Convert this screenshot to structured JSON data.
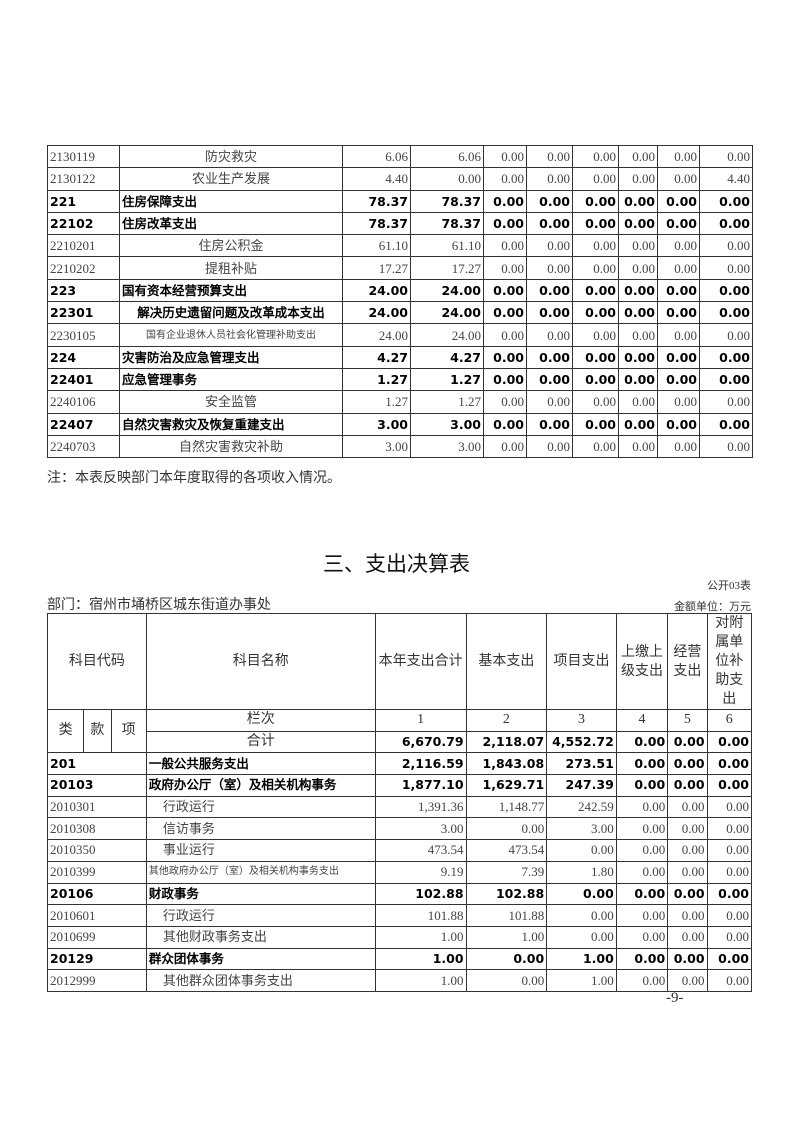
{
  "table1": {
    "rows": [
      {
        "code": "2130119",
        "name": "防灾救灾",
        "v": [
          "6.06",
          "6.06",
          "0.00",
          "0.00",
          "0.00",
          "0.00",
          "0.00",
          "0.00"
        ],
        "bold": false,
        "align": "c"
      },
      {
        "code": "2130122",
        "name": "农业生产发展",
        "v": [
          "4.40",
          "0.00",
          "0.00",
          "0.00",
          "0.00",
          "0.00",
          "0.00",
          "4.40"
        ],
        "bold": false,
        "align": "c"
      },
      {
        "code": "221",
        "name": "住房保障支出",
        "v": [
          "78.37",
          "78.37",
          "0.00",
          "0.00",
          "0.00",
          "0.00",
          "0.00",
          "0.00"
        ],
        "bold": true,
        "align": "l"
      },
      {
        "code": "22102",
        "name": "住房改革支出",
        "v": [
          "78.37",
          "78.37",
          "0.00",
          "0.00",
          "0.00",
          "0.00",
          "0.00",
          "0.00"
        ],
        "bold": true,
        "align": "l"
      },
      {
        "code": "2210201",
        "name": "住房公积金",
        "v": [
          "61.10",
          "61.10",
          "0.00",
          "0.00",
          "0.00",
          "0.00",
          "0.00",
          "0.00"
        ],
        "bold": false,
        "align": "c"
      },
      {
        "code": "2210202",
        "name": "提租补贴",
        "v": [
          "17.27",
          "17.27",
          "0.00",
          "0.00",
          "0.00",
          "0.00",
          "0.00",
          "0.00"
        ],
        "bold": false,
        "align": "c"
      },
      {
        "code": "223",
        "name": "国有资本经营预算支出",
        "v": [
          "24.00",
          "24.00",
          "0.00",
          "0.00",
          "0.00",
          "0.00",
          "0.00",
          "0.00"
        ],
        "bold": true,
        "align": "l"
      },
      {
        "code": "22301",
        "name": "解决历史遗留问题及改革成本支出",
        "v": [
          "24.00",
          "24.00",
          "0.00",
          "0.00",
          "0.00",
          "0.00",
          "0.00",
          "0.00"
        ],
        "bold": true,
        "align": "c"
      },
      {
        "code": "2230105",
        "name": "国有企业退休人员社会化管理补助支出",
        "v": [
          "24.00",
          "24.00",
          "0.00",
          "0.00",
          "0.00",
          "0.00",
          "0.00",
          "0.00"
        ],
        "bold": false,
        "align": "c",
        "small": true
      },
      {
        "code": "224",
        "name": "灾害防治及应急管理支出",
        "v": [
          "4.27",
          "4.27",
          "0.00",
          "0.00",
          "0.00",
          "0.00",
          "0.00",
          "0.00"
        ],
        "bold": true,
        "align": "l"
      },
      {
        "code": "22401",
        "name": "应急管理事务",
        "v": [
          "1.27",
          "1.27",
          "0.00",
          "0.00",
          "0.00",
          "0.00",
          "0.00",
          "0.00"
        ],
        "bold": true,
        "align": "l"
      },
      {
        "code": "2240106",
        "name": "安全监管",
        "v": [
          "1.27",
          "1.27",
          "0.00",
          "0.00",
          "0.00",
          "0.00",
          "0.00",
          "0.00"
        ],
        "bold": false,
        "align": "c"
      },
      {
        "code": "22407",
        "name": "自然灾害救灾及恢复重建支出",
        "v": [
          "3.00",
          "3.00",
          "0.00",
          "0.00",
          "0.00",
          "0.00",
          "0.00",
          "0.00"
        ],
        "bold": true,
        "align": "l"
      },
      {
        "code": "2240703",
        "name": "自然灾害救灾补助",
        "v": [
          "3.00",
          "3.00",
          "0.00",
          "0.00",
          "0.00",
          "0.00",
          "0.00",
          "0.00"
        ],
        "bold": false,
        "align": "c"
      }
    ],
    "note": "注：本表反映部门本年度取得的各项收入情况。"
  },
  "table2": {
    "title": "三、支出决算表",
    "form_no": "公开03表",
    "department": "部门：宿州市埇桥区城东街道办事处",
    "unit": "金额单位：万元",
    "headers": {
      "code": "科目代码",
      "name": "科目名称",
      "cols": [
        "本年支出合计",
        "基本支出",
        "项目支出",
        "上缴上级支出",
        "经营支出",
        "对附属单位补助支出"
      ],
      "lei": "类",
      "kuan": "款",
      "xiang": "项",
      "lanci": "栏次",
      "nums": [
        "1",
        "2",
        "3",
        "4",
        "5",
        "6"
      ]
    },
    "total": {
      "label": "合计",
      "v": [
        "6,670.79",
        "2,118.07",
        "4,552.72",
        "0.00",
        "0.00",
        "0.00"
      ]
    },
    "rows": [
      {
        "code": "201",
        "name": "一般公共服务支出",
        "v": [
          "2,116.59",
          "1,843.08",
          "273.51",
          "0.00",
          "0.00",
          "0.00"
        ],
        "bold": true
      },
      {
        "code": "20103",
        "name": "政府办公厅（室）及相关机构事务",
        "v": [
          "1,877.10",
          "1,629.71",
          "247.39",
          "0.00",
          "0.00",
          "0.00"
        ],
        "bold": true
      },
      {
        "code": "2010301",
        "name": "行政运行",
        "v": [
          "1,391.36",
          "1,148.77",
          "242.59",
          "0.00",
          "0.00",
          "0.00"
        ],
        "bold": false,
        "indent": true
      },
      {
        "code": "2010308",
        "name": "信访事务",
        "v": [
          "3.00",
          "0.00",
          "3.00",
          "0.00",
          "0.00",
          "0.00"
        ],
        "bold": false,
        "indent": true
      },
      {
        "code": "2010350",
        "name": "事业运行",
        "v": [
          "473.54",
          "473.54",
          "0.00",
          "0.00",
          "0.00",
          "0.00"
        ],
        "bold": false,
        "indent": true
      },
      {
        "code": "2010399",
        "name": "其他政府办公厅（室）及相关机构事务支出",
        "v": [
          "9.19",
          "7.39",
          "1.80",
          "0.00",
          "0.00",
          "0.00"
        ],
        "bold": false,
        "small": true
      },
      {
        "code": "20106",
        "name": "财政事务",
        "v": [
          "102.88",
          "102.88",
          "0.00",
          "0.00",
          "0.00",
          "0.00"
        ],
        "bold": true
      },
      {
        "code": "2010601",
        "name": "行政运行",
        "v": [
          "101.88",
          "101.88",
          "0.00",
          "0.00",
          "0.00",
          "0.00"
        ],
        "bold": false,
        "indent": true
      },
      {
        "code": "2010699",
        "name": "其他财政事务支出",
        "v": [
          "1.00",
          "1.00",
          "0.00",
          "0.00",
          "0.00",
          "0.00"
        ],
        "bold": false,
        "indent": true
      },
      {
        "code": "20129",
        "name": "群众团体事务",
        "v": [
          "1.00",
          "0.00",
          "1.00",
          "0.00",
          "0.00",
          "0.00"
        ],
        "bold": true
      },
      {
        "code": "2012999",
        "name": "其他群众团体事务支出",
        "v": [
          "1.00",
          "0.00",
          "1.00",
          "0.00",
          "0.00",
          "0.00"
        ],
        "bold": false,
        "indent": true
      }
    ]
  },
  "page_number": "-9-"
}
